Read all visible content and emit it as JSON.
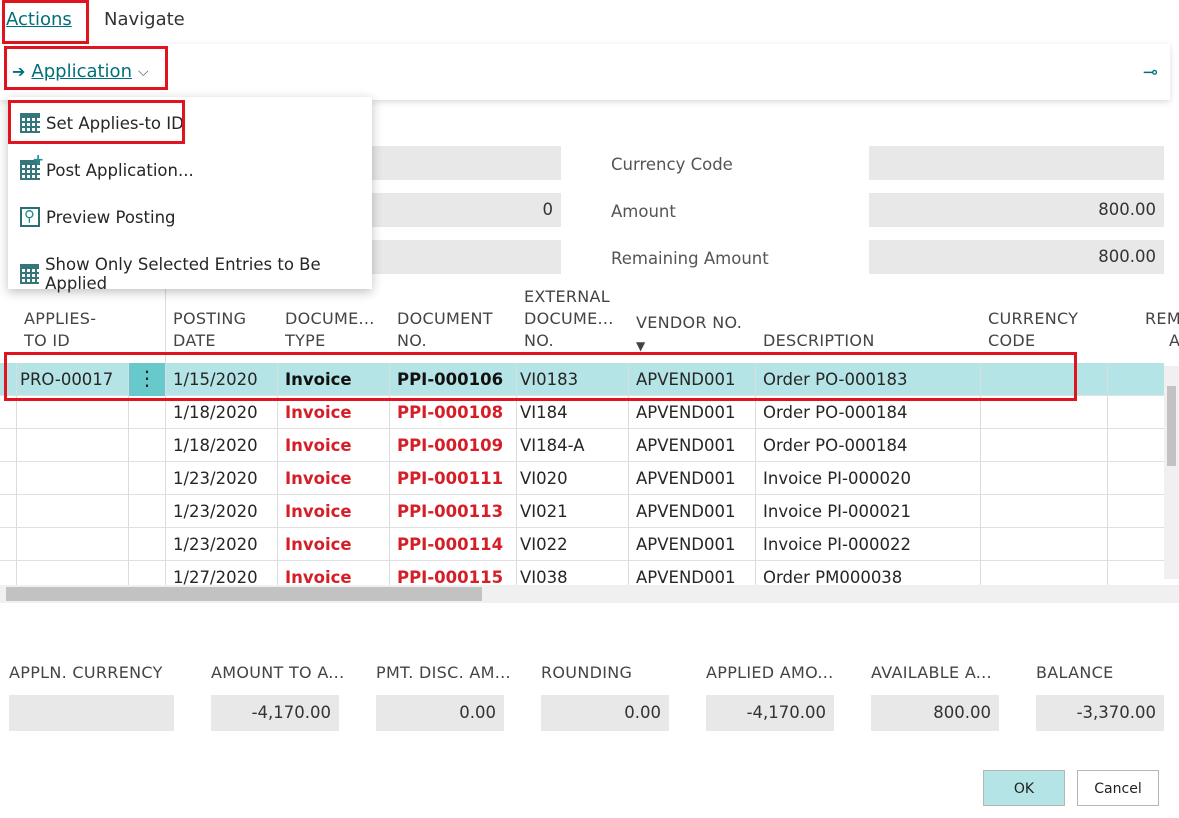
{
  "tabs": {
    "actions": "Actions",
    "navigate": "Navigate"
  },
  "ribbon": {
    "application": "Application"
  },
  "menu": {
    "items": [
      {
        "label": "Set Applies-to ID"
      },
      {
        "label": "Post Application..."
      },
      {
        "label": "Preview Posting"
      },
      {
        "label": "Show Only Selected Entries to Be Applied"
      }
    ]
  },
  "header_fields": {
    "partial_amount_fragment": "0",
    "currency_code_label": "Currency Code",
    "currency_code_value": "",
    "amount_label": "Amount",
    "amount_value": "800.00",
    "remaining_amount_label": "Remaining Amount",
    "remaining_amount_value": "800.00"
  },
  "columns": {
    "applies_to_id": [
      "APPLIES-",
      "TO ID"
    ],
    "posting_date": [
      "POSTING",
      "DATE"
    ],
    "document_type": [
      "DOCUME...",
      "TYPE"
    ],
    "document_no": [
      "DOCUMENT",
      "NO."
    ],
    "external_document": [
      "EXTERNAL",
      "DOCUME...",
      "NO."
    ],
    "vendor_no": "VENDOR NO.",
    "description": "DESCRIPTION",
    "currency_code": [
      "CURRENCY",
      "CODE"
    ],
    "remaining_fragment": [
      "REM",
      "A"
    ]
  },
  "rows": [
    {
      "applies_to_id": "PRO-00017",
      "posting_date": "1/15/2020",
      "document_type": "Invoice",
      "document_no": "PPI-000106",
      "external_document_no": "VI0183",
      "vendor_no": "APVEND001",
      "description": "Order PO-000183"
    },
    {
      "applies_to_id": "",
      "posting_date": "1/18/2020",
      "document_type": "Invoice",
      "document_no": "PPI-000108",
      "external_document_no": "VI184",
      "vendor_no": "APVEND001",
      "description": "Order PO-000184"
    },
    {
      "applies_to_id": "",
      "posting_date": "1/18/2020",
      "document_type": "Invoice",
      "document_no": "PPI-000109",
      "external_document_no": "VI184-A",
      "vendor_no": "APVEND001",
      "description": "Order PO-000184"
    },
    {
      "applies_to_id": "",
      "posting_date": "1/23/2020",
      "document_type": "Invoice",
      "document_no": "PPI-000111",
      "external_document_no": "VI020",
      "vendor_no": "APVEND001",
      "description": "Invoice PI-000020"
    },
    {
      "applies_to_id": "",
      "posting_date": "1/23/2020",
      "document_type": "Invoice",
      "document_no": "PPI-000113",
      "external_document_no": "VI021",
      "vendor_no": "APVEND001",
      "description": "Invoice PI-000021"
    },
    {
      "applies_to_id": "",
      "posting_date": "1/23/2020",
      "document_type": "Invoice",
      "document_no": "PPI-000114",
      "external_document_no": "VI022",
      "vendor_no": "APVEND001",
      "description": "Invoice PI-000022"
    },
    {
      "applies_to_id": "",
      "posting_date": "1/27/2020",
      "document_type": "Invoice",
      "document_no": "PPI-000115",
      "external_document_no": "VI038",
      "vendor_no": "APVEND001",
      "description": "Order PM000038"
    }
  ],
  "summary": {
    "appln_currency_label": "APPLN. CURRENCY",
    "appln_currency_value": "",
    "amount_to_apply_label": "AMOUNT TO A...",
    "amount_to_apply_value": "-4,170.00",
    "pmt_disc_label": "PMT. DISC. AM...",
    "pmt_disc_value": "0.00",
    "rounding_label": "ROUNDING",
    "rounding_value": "0.00",
    "applied_amount_label": "APPLIED AMO...",
    "applied_amount_value": "-4,170.00",
    "available_amount_label": "AVAILABLE A...",
    "available_amount_value": "800.00",
    "balance_label": "BALANCE",
    "balance_value": "-3,370.00"
  },
  "buttons": {
    "ok": "OK",
    "cancel": "Cancel"
  },
  "colors": {
    "accent": "#00707a",
    "highlight": "#e0141e",
    "selected_row": "#b4e4e6",
    "negative_doc": "#d51f28"
  }
}
